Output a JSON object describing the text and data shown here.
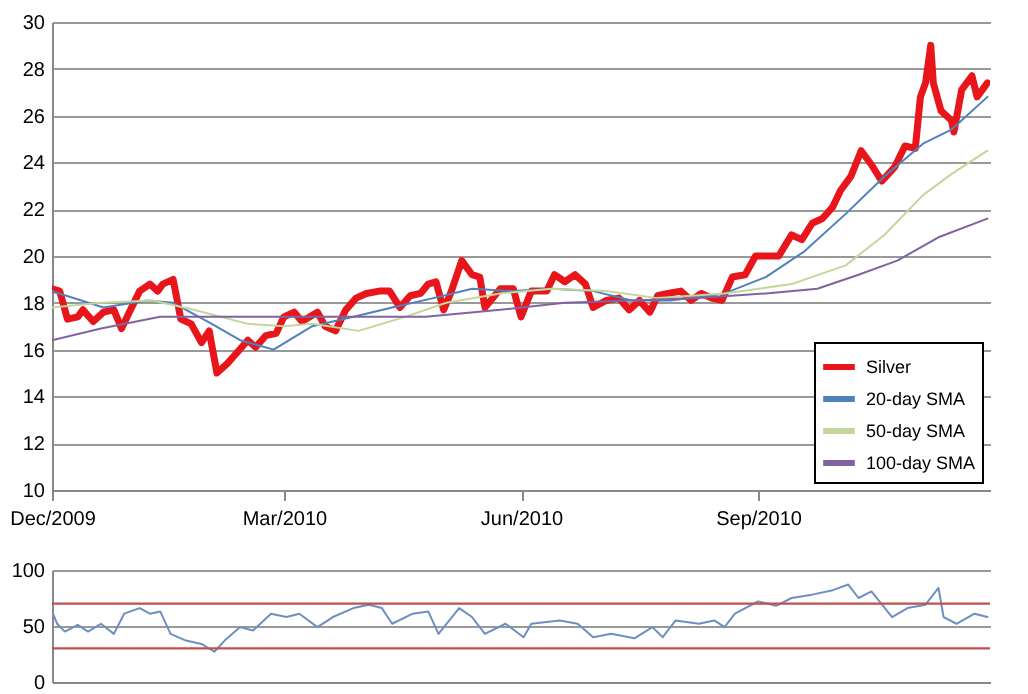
{
  "chart_data": [
    {
      "type": "line",
      "xlim": [
        "2009-12-01",
        "2010-11-30"
      ],
      "ylim": [
        10,
        30
      ],
      "yticks": [
        10,
        12,
        14,
        16,
        18,
        20,
        22,
        24,
        26,
        28,
        30
      ],
      "xticks": [
        {
          "value": "2009-12-01",
          "label": "Dec/2009"
        },
        {
          "value": "2010-03-01",
          "label": "Mar/2010"
        },
        {
          "value": "2010-06-01",
          "label": "Jun/2010"
        },
        {
          "value": "2010-09-01",
          "label": "Sep/2010"
        }
      ],
      "grid": "y",
      "legend": "bottom right",
      "series": [
        {
          "name": "Silver",
          "color": "#e8161b",
          "x": [
            "2009-12-01",
            "2009-12-04",
            "2009-12-07",
            "2009-12-11",
            "2009-12-13",
            "2009-12-17",
            "2009-12-21",
            "2009-12-25",
            "2009-12-28",
            "2009-12-31",
            "2010-01-04",
            "2010-01-08",
            "2010-01-11",
            "2010-01-13",
            "2010-01-17",
            "2010-01-20",
            "2010-01-24",
            "2010-01-28",
            "2010-01-31",
            "2010-02-03",
            "2010-02-07",
            "2010-02-11",
            "2010-02-15",
            "2010-02-18",
            "2010-02-22",
            "2010-02-26",
            "2010-03-01",
            "2010-03-05",
            "2010-03-08",
            "2010-03-14",
            "2010-03-17",
            "2010-03-21",
            "2010-03-25",
            "2010-03-29",
            "2010-04-02",
            "2010-04-07",
            "2010-04-11",
            "2010-04-15",
            "2010-04-19",
            "2010-04-23",
            "2010-04-26",
            "2010-04-29",
            "2010-05-02",
            "2010-05-05",
            "2010-05-09",
            "2010-05-13",
            "2010-05-16",
            "2010-05-18",
            "2010-05-24",
            "2010-05-29",
            "2010-06-01",
            "2010-06-05",
            "2010-06-11",
            "2010-06-14",
            "2010-06-18",
            "2010-06-22",
            "2010-06-26",
            "2010-06-29",
            "2010-07-04",
            "2010-07-09",
            "2010-07-13",
            "2010-07-17",
            "2010-07-21",
            "2010-07-24",
            "2010-07-28",
            "2010-08-02",
            "2010-08-06",
            "2010-08-10",
            "2010-08-14",
            "2010-08-18",
            "2010-08-22",
            "2010-08-27",
            "2010-08-31",
            "2010-09-05",
            "2010-09-09",
            "2010-09-14",
            "2010-09-18",
            "2010-09-22",
            "2010-09-26",
            "2010-09-30",
            "2010-10-03",
            "2010-10-07",
            "2010-10-11",
            "2010-10-15",
            "2010-10-19",
            "2010-10-24",
            "2010-10-28",
            "2010-11-01",
            "2010-11-03",
            "2010-11-05",
            "2010-11-07",
            "2010-11-08",
            "2010-11-11",
            "2010-11-15",
            "2010-11-16",
            "2010-11-19",
            "2010-11-23",
            "2010-11-25",
            "2010-11-29"
          ],
          "values": [
            18.6,
            18.5,
            17.3,
            17.4,
            17.7,
            17.2,
            17.6,
            17.7,
            16.9,
            17.6,
            18.5,
            18.8,
            18.5,
            18.8,
            19.0,
            17.3,
            17.1,
            16.3,
            16.8,
            15.0,
            15.4,
            15.9,
            16.4,
            16.1,
            16.6,
            16.7,
            17.4,
            17.6,
            17.2,
            17.6,
            17.0,
            16.8,
            17.7,
            18.2,
            18.4,
            18.5,
            18.5,
            17.8,
            18.3,
            18.4,
            18.8,
            18.9,
            17.7,
            18.5,
            19.8,
            19.2,
            19.1,
            17.8,
            18.6,
            18.6,
            17.4,
            18.5,
            18.5,
            19.2,
            18.9,
            19.2,
            18.8,
            17.8,
            18.1,
            18.2,
            17.7,
            18.1,
            17.6,
            18.3,
            18.4,
            18.5,
            18.1,
            18.4,
            18.2,
            18.1,
            19.1,
            19.2,
            20.0,
            20.0,
            20.0,
            20.9,
            20.7,
            21.4,
            21.6,
            22.1,
            22.8,
            23.4,
            24.5,
            23.9,
            23.2,
            23.8,
            24.7,
            24.6,
            26.8,
            27.4,
            29.0,
            27.4,
            26.2,
            25.8,
            25.3,
            27.1,
            27.7,
            26.8,
            27.4
          ]
        },
        {
          "name": "20-day SMA",
          "color": "#4f81bd",
          "x": [
            "2009-12-01",
            "2009-12-21",
            "2010-01-07",
            "2010-01-17",
            "2010-02-01",
            "2010-02-12",
            "2010-02-25",
            "2010-03-12",
            "2010-03-28",
            "2010-04-12",
            "2010-04-28",
            "2010-05-13",
            "2010-05-29",
            "2010-06-13",
            "2010-06-29",
            "2010-07-14",
            "2010-07-29",
            "2010-08-19",
            "2010-09-04",
            "2010-09-19",
            "2010-10-05",
            "2010-10-20",
            "2010-11-04",
            "2010-11-15",
            "2010-11-29"
          ],
          "values": [
            18.5,
            17.8,
            18.1,
            18.0,
            17.1,
            16.4,
            16.0,
            17.0,
            17.4,
            17.8,
            18.2,
            18.6,
            18.5,
            18.6,
            18.5,
            18.1,
            18.1,
            18.4,
            19.1,
            20.2,
            21.8,
            23.4,
            24.8,
            25.4,
            26.8
          ]
        },
        {
          "name": "50-day SMA",
          "color": "#c3d69b",
          "x": [
            "2009-12-01",
            "2009-12-20",
            "2010-01-09",
            "2010-01-25",
            "2010-02-15",
            "2010-03-01",
            "2010-03-12",
            "2010-03-30",
            "2010-04-17",
            "2010-05-03",
            "2010-05-24",
            "2010-06-13",
            "2010-07-04",
            "2010-07-24",
            "2010-08-19",
            "2010-09-14",
            "2010-10-05",
            "2010-10-20",
            "2010-11-04",
            "2010-11-15",
            "2010-11-29"
          ],
          "values": [
            17.8,
            18.0,
            18.1,
            17.7,
            17.1,
            17.0,
            17.1,
            16.8,
            17.4,
            18.0,
            18.4,
            18.6,
            18.5,
            18.2,
            18.4,
            18.8,
            19.6,
            20.9,
            22.6,
            23.5,
            24.5
          ]
        },
        {
          "name": "100-day SMA",
          "color": "#8064a2",
          "x": [
            "2009-12-01",
            "2009-12-20",
            "2010-01-12",
            "2010-02-01",
            "2010-02-27",
            "2010-03-25",
            "2010-04-25",
            "2010-05-24",
            "2010-06-18",
            "2010-07-14",
            "2010-08-09",
            "2010-09-04",
            "2010-09-24",
            "2010-10-10",
            "2010-10-25",
            "2010-11-10",
            "2010-11-29"
          ],
          "values": [
            16.4,
            16.9,
            17.4,
            17.4,
            17.4,
            17.4,
            17.4,
            17.7,
            18.0,
            18.1,
            18.2,
            18.4,
            18.6,
            19.2,
            19.8,
            20.8,
            21.6
          ]
        }
      ]
    },
    {
      "type": "line",
      "xlim": [
        "2009-12-01",
        "2010-11-30"
      ],
      "ylim": [
        0,
        100
      ],
      "yticks": [
        0,
        50,
        100
      ],
      "grid": "y",
      "tick_labels": "y",
      "ref_lines": [
        {
          "axis": "y",
          "value": 70,
          "color": "#c0504d"
        },
        {
          "axis": "y",
          "value": 30,
          "color": "#c0504d"
        }
      ],
      "series": [
        {
          "color": "#6f8fc0",
          "x": [
            "2009-12-01",
            "2009-12-03",
            "2009-12-06",
            "2009-12-11",
            "2009-12-15",
            "2009-12-20",
            "2009-12-25",
            "2009-12-29",
            "2010-01-04",
            "2010-01-08",
            "2010-01-12",
            "2010-01-16",
            "2010-01-22",
            "2010-01-28",
            "2010-02-02",
            "2010-02-06",
            "2010-02-12",
            "2010-02-17",
            "2010-02-24",
            "2010-03-02",
            "2010-03-07",
            "2010-03-14",
            "2010-03-20",
            "2010-03-28",
            "2010-04-03",
            "2010-04-08",
            "2010-04-12",
            "2010-04-20",
            "2010-04-26",
            "2010-04-30",
            "2010-05-08",
            "2010-05-13",
            "2010-05-18",
            "2010-05-26",
            "2010-06-02",
            "2010-06-05",
            "2010-06-16",
            "2010-06-23",
            "2010-06-29",
            "2010-07-06",
            "2010-07-15",
            "2010-07-22",
            "2010-07-26",
            "2010-07-31",
            "2010-08-09",
            "2010-08-15",
            "2010-08-19",
            "2010-08-23",
            "2010-09-01",
            "2010-09-08",
            "2010-09-14",
            "2010-09-22",
            "2010-09-30",
            "2010-10-06",
            "2010-10-10",
            "2010-10-15",
            "2010-10-23",
            "2010-10-29",
            "2010-11-05",
            "2010-11-10",
            "2010-11-12",
            "2010-11-17",
            "2010-11-24",
            "2010-11-29"
          ],
          "values": [
            63,
            52,
            45,
            51,
            45,
            52,
            43,
            61,
            66,
            61,
            63,
            43,
            37,
            34,
            27,
            37,
            49,
            46,
            61,
            58,
            61,
            49,
            58,
            66,
            69,
            66,
            52,
            61,
            63,
            43,
            66,
            58,
            43,
            52,
            40,
            52,
            55,
            52,
            40,
            43,
            39,
            49,
            40,
            55,
            52,
            55,
            49,
            61,
            72,
            68,
            75,
            78,
            82,
            87,
            75,
            81,
            58,
            66,
            69,
            84,
            58,
            52,
            61,
            58
          ]
        }
      ]
    }
  ]
}
